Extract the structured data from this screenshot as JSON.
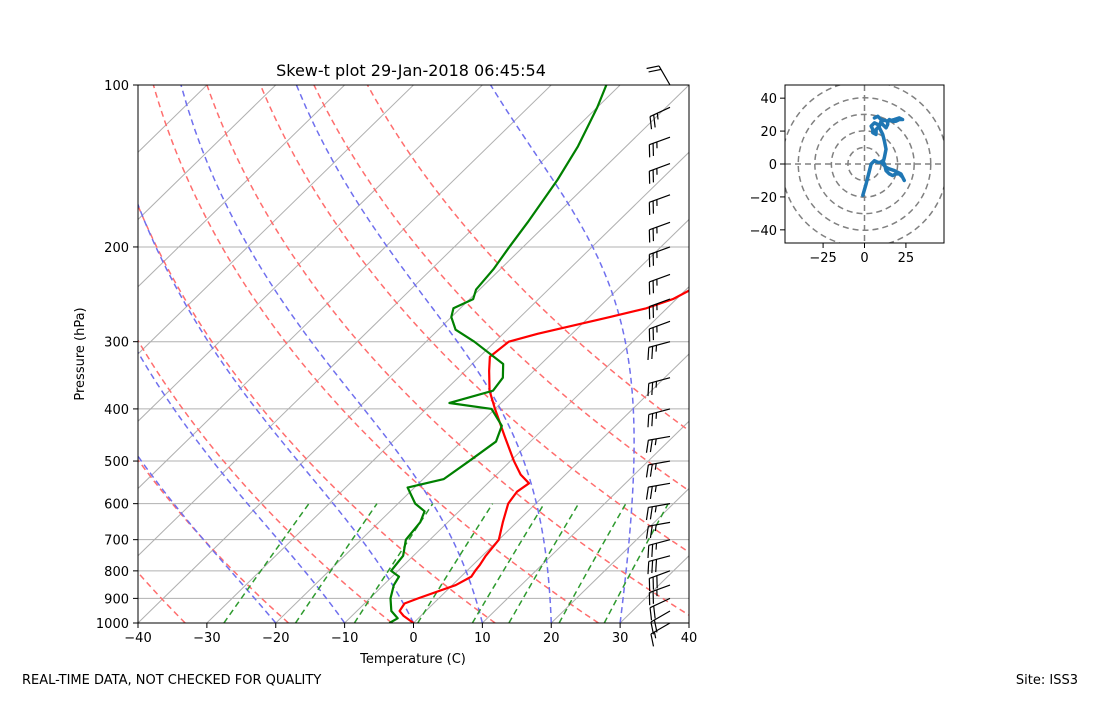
{
  "chart_data": [
    {
      "type": "skew-t",
      "title": "Skew-t plot 29-Jan-2018 06:45:54",
      "xlabel": "Temperature (C)",
      "ylabel": "Pressure (hPa)",
      "xlim": [
        -40,
        40
      ],
      "ylim": [
        1000,
        100
      ],
      "x_ticks": [
        -40,
        -30,
        -20,
        -10,
        0,
        10,
        20,
        30,
        40
      ],
      "x_tick_labels": [
        "−40",
        "−30",
        "−20",
        "−10",
        "0",
        "10",
        "20",
        "30",
        "40"
      ],
      "y_ticks": [
        100,
        200,
        300,
        400,
        500,
        600,
        700,
        800,
        900,
        1000
      ],
      "y_tick_labels": [
        "100",
        "200",
        "300",
        "400",
        "500",
        "600",
        "700",
        "800",
        "900",
        "1000"
      ],
      "isotherms_C": [
        -150,
        -140,
        -130,
        -120,
        -110,
        -100,
        -90,
        -80,
        -70,
        -60,
        -50,
        -40,
        -30,
        -20,
        -10,
        0,
        10,
        20,
        30,
        40
      ],
      "dry_adiabats_K": [
        240,
        255,
        270,
        285,
        300,
        315,
        330,
        345,
        360
      ],
      "moist_adiabats_C": [
        -20,
        -10,
        0,
        10,
        20,
        30
      ],
      "mixing_ratio_lines_gkg": [
        0.4,
        1,
        2,
        4,
        7,
        10,
        16,
        24
      ],
      "series": [
        {
          "name": "Temperature",
          "color": "#ff0000",
          "points": [
            [
              1000,
              0.0
            ],
            [
              970,
              -2.5
            ],
            [
              950,
              -3.8
            ],
            [
              920,
              -4.2
            ],
            [
              900,
              -3.0
            ],
            [
              850,
              0.5
            ],
            [
              820,
              1.5
            ],
            [
              800,
              1.2
            ],
            [
              780,
              1.0
            ],
            [
              750,
              0.5
            ],
            [
              700,
              0.0
            ],
            [
              650,
              -2.0
            ],
            [
              600,
              -4.0
            ],
            [
              570,
              -4.5
            ],
            [
              550,
              -4.0
            ],
            [
              530,
              -6.5
            ],
            [
              500,
              -9.5
            ],
            [
              450,
              -14.5
            ],
            [
              400,
              -20.0
            ],
            [
              370,
              -23.5
            ],
            [
              340,
              -26.5
            ],
            [
              320,
              -28.5
            ],
            [
              300,
              -28.0
            ],
            [
              290,
              -25.0
            ],
            [
              270,
              -17.0
            ],
            [
              260,
              -13.0
            ],
            [
              250,
              -10.5
            ],
            [
              230,
              -8.0
            ],
            [
              200,
              -3.0
            ],
            [
              180,
              1.0
            ],
            [
              160,
              5.0
            ],
            [
              140,
              9.5
            ],
            [
              120,
              14.5
            ],
            [
              110,
              17.0
            ],
            [
              100,
              18.5
            ]
          ]
        },
        {
          "name": "Dewpoint",
          "color": "#008000",
          "points": [
            [
              1000,
              -3.5
            ],
            [
              980,
              -3.0
            ],
            [
              950,
              -5.0
            ],
            [
              900,
              -7.0
            ],
            [
              850,
              -8.5
            ],
            [
              820,
              -9.0
            ],
            [
              800,
              -11.0
            ],
            [
              750,
              -11.5
            ],
            [
              700,
              -13.5
            ],
            [
              650,
              -14.0
            ],
            [
              620,
              -15.0
            ],
            [
              600,
              -17.5
            ],
            [
              560,
              -21.0
            ],
            [
              540,
              -17.0
            ],
            [
              500,
              -16.0
            ],
            [
              460,
              -15.0
            ],
            [
              430,
              -16.5
            ],
            [
              400,
              -20.5
            ],
            [
              390,
              -27.5
            ],
            [
              370,
              -23.0
            ],
            [
              350,
              -23.5
            ],
            [
              330,
              -25.5
            ],
            [
              300,
              -33.0
            ],
            [
              285,
              -37.5
            ],
            [
              270,
              -40.0
            ],
            [
              260,
              -41.0
            ],
            [
              250,
              -39.5
            ],
            [
              240,
              -40.5
            ],
            [
              220,
              -41.0
            ],
            [
              200,
              -42.0
            ],
            [
              180,
              -43.0
            ],
            [
              150,
              -45.0
            ],
            [
              130,
              -47.0
            ],
            [
              110,
              -50.0
            ],
            [
              100,
              -52.0
            ]
          ]
        }
      ],
      "wind_barbs": [
        {
          "p": 1000,
          "speed_kt": 15,
          "dir_deg": 240
        },
        {
          "p": 950,
          "speed_kt": 20,
          "dir_deg": 240
        },
        {
          "p": 900,
          "speed_kt": 20,
          "dir_deg": 245
        },
        {
          "p": 850,
          "speed_kt": 25,
          "dir_deg": 250
        },
        {
          "p": 800,
          "speed_kt": 30,
          "dir_deg": 250
        },
        {
          "p": 750,
          "speed_kt": 30,
          "dir_deg": 255
        },
        {
          "p": 700,
          "speed_kt": 25,
          "dir_deg": 255
        },
        {
          "p": 650,
          "speed_kt": 25,
          "dir_deg": 260
        },
        {
          "p": 600,
          "speed_kt": 25,
          "dir_deg": 260
        },
        {
          "p": 550,
          "speed_kt": 25,
          "dir_deg": 260
        },
        {
          "p": 500,
          "speed_kt": 25,
          "dir_deg": 260
        },
        {
          "p": 450,
          "speed_kt": 25,
          "dir_deg": 260
        },
        {
          "p": 400,
          "speed_kt": 25,
          "dir_deg": 255
        },
        {
          "p": 350,
          "speed_kt": 25,
          "dir_deg": 255
        },
        {
          "p": 300,
          "speed_kt": 25,
          "dir_deg": 255
        },
        {
          "p": 275,
          "speed_kt": 25,
          "dir_deg": 250
        },
        {
          "p": 250,
          "speed_kt": 25,
          "dir_deg": 250
        },
        {
          "p": 225,
          "speed_kt": 25,
          "dir_deg": 250
        },
        {
          "p": 200,
          "speed_kt": 25,
          "dir_deg": 250
        },
        {
          "p": 180,
          "speed_kt": 25,
          "dir_deg": 250
        },
        {
          "p": 160,
          "speed_kt": 25,
          "dir_deg": 250
        },
        {
          "p": 140,
          "speed_kt": 25,
          "dir_deg": 250
        },
        {
          "p": 125,
          "speed_kt": 25,
          "dir_deg": 250
        },
        {
          "p": 110,
          "speed_kt": 25,
          "dir_deg": 245
        },
        {
          "p": 100,
          "speed_kt": 20,
          "dir_deg": 330
        }
      ]
    },
    {
      "type": "hodograph",
      "xlim": [
        -48,
        48
      ],
      "ylim": [
        -48,
        48
      ],
      "x_ticks": [
        -25,
        0,
        25
      ],
      "x_tick_labels": [
        "−25",
        "0",
        "25"
      ],
      "y_ticks": [
        40,
        20,
        0,
        -20,
        -40
      ],
      "y_tick_labels": [
        "40",
        "20",
        "0",
        "−20",
        "−40"
      ],
      "rings": [
        10,
        20,
        30,
        40,
        50
      ],
      "color": "#1f77b4",
      "points": [
        [
          -1,
          -19
        ],
        [
          1,
          -12
        ],
        [
          3,
          -4
        ],
        [
          4,
          0
        ],
        [
          6,
          2
        ],
        [
          8,
          1
        ],
        [
          10,
          1
        ],
        [
          11,
          2
        ],
        [
          12,
          0
        ],
        [
          13,
          -4
        ],
        [
          15,
          -6
        ],
        [
          17,
          -7
        ],
        [
          19,
          -6
        ],
        [
          21,
          -6
        ],
        [
          23,
          -8
        ],
        [
          24,
          -10
        ],
        [
          22,
          -6
        ],
        [
          18,
          -4
        ],
        [
          15,
          -3
        ],
        [
          13,
          -2
        ],
        [
          11,
          0
        ],
        [
          12,
          4
        ],
        [
          13,
          9
        ],
        [
          12,
          14
        ],
        [
          11,
          18
        ],
        [
          10,
          20
        ],
        [
          9,
          22
        ],
        [
          8,
          24
        ],
        [
          6,
          25
        ],
        [
          5,
          24
        ],
        [
          4,
          23
        ],
        [
          5,
          21
        ],
        [
          5,
          19
        ],
        [
          7,
          18
        ],
        [
          7,
          21
        ],
        [
          9,
          23
        ],
        [
          10,
          26
        ],
        [
          11,
          24
        ],
        [
          13,
          22
        ],
        [
          14,
          24
        ],
        [
          14,
          26
        ],
        [
          15,
          27
        ],
        [
          17,
          26
        ],
        [
          19,
          26
        ],
        [
          21,
          27
        ],
        [
          23,
          27
        ],
        [
          21,
          28
        ],
        [
          18,
          27
        ],
        [
          14,
          26
        ],
        [
          10,
          27
        ],
        [
          8,
          29
        ],
        [
          6,
          28
        ]
      ]
    }
  ],
  "footer": {
    "left": "REAL-TIME DATA, NOT CHECKED FOR QUALITY",
    "right": "Site: ISS3"
  }
}
